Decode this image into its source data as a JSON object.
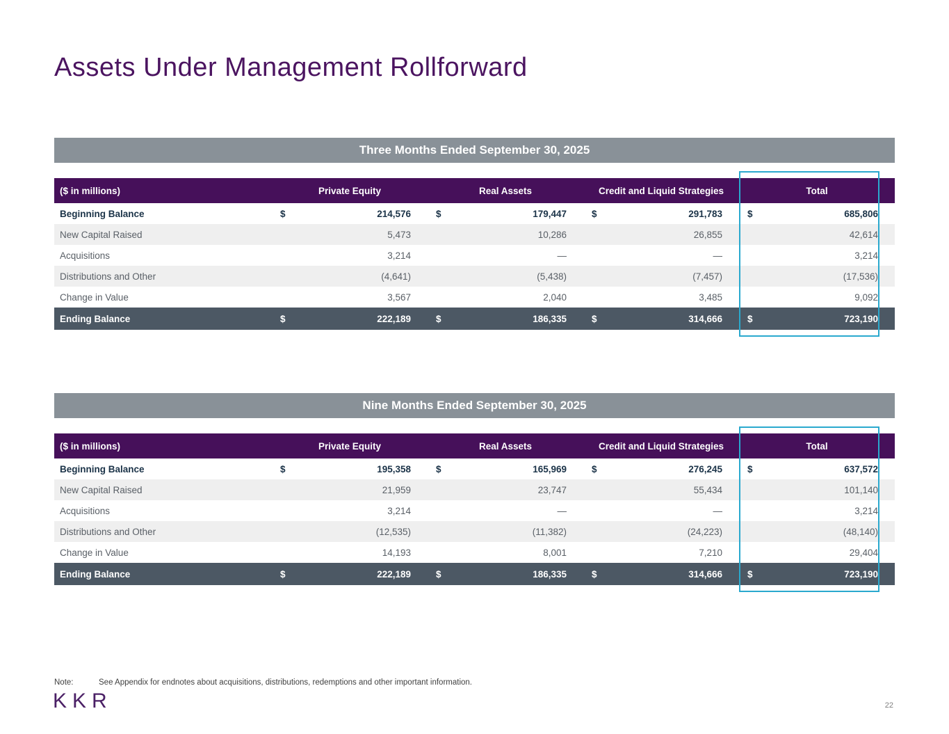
{
  "page": {
    "title": "Assets Under Management Rollforward",
    "page_number": "22"
  },
  "dollar_sign": "$",
  "colors": {
    "purple": "#46105A",
    "title-purple": "#4B1460",
    "banner-gray": "#899198",
    "slate": "#4C5864",
    "shade": "#EFEFEF",
    "text-gray": "#595F66",
    "text-navy": "#1B3348",
    "teal": "#2AA9CE",
    "note-gray": "#404040",
    "pagenum-gray": "#7F7F7F",
    "logo-purple": "#4B2066"
  },
  "tables": [
    {
      "banner": "Three Months Ended September 30, 2025",
      "header": {
        "label_col": "($ in millions)",
        "columns": [
          "Private Equity",
          "Real Assets",
          "Credit and Liquid Strategies",
          "Total"
        ]
      },
      "rows": [
        {
          "label": "Beginning Balance",
          "dollar": true,
          "bold": true,
          "shaded": false,
          "total": false,
          "values": [
            "214,576",
            "179,447",
            "291,783",
            "685,806"
          ]
        },
        {
          "label": "New Capital Raised",
          "dollar": false,
          "bold": false,
          "shaded": true,
          "total": false,
          "values": [
            "5,473",
            "10,286",
            "26,855",
            "42,614"
          ]
        },
        {
          "label": "Acquisitions",
          "dollar": false,
          "bold": false,
          "shaded": false,
          "total": false,
          "values": [
            "3,214",
            "—",
            "—",
            "3,214"
          ]
        },
        {
          "label": "Distributions and Other",
          "dollar": false,
          "bold": false,
          "shaded": true,
          "total": false,
          "values": [
            "(4,641)",
            "(5,438)",
            "(7,457)",
            "(17,536)"
          ]
        },
        {
          "label": "Change in Value",
          "dollar": false,
          "bold": false,
          "shaded": false,
          "total": false,
          "values": [
            "3,567",
            "2,040",
            "3,485",
            "9,092"
          ]
        },
        {
          "label": "Ending Balance",
          "dollar": true,
          "bold": false,
          "shaded": false,
          "total": true,
          "values": [
            "222,189",
            "186,335",
            "314,666",
            "723,190"
          ]
        }
      ]
    },
    {
      "banner": "Nine Months Ended September 30, 2025",
      "header": {
        "label_col": "($ in millions)",
        "columns": [
          "Private Equity",
          "Real Assets",
          "Credit and Liquid Strategies",
          "Total"
        ]
      },
      "rows": [
        {
          "label": "Beginning Balance",
          "dollar": true,
          "bold": true,
          "shaded": false,
          "total": false,
          "values": [
            "195,358",
            "165,969",
            "276,245",
            "637,572"
          ]
        },
        {
          "label": "New Capital Raised",
          "dollar": false,
          "bold": false,
          "shaded": true,
          "total": false,
          "values": [
            "21,959",
            "23,747",
            "55,434",
            "101,140"
          ]
        },
        {
          "label": "Acquisitions",
          "dollar": false,
          "bold": false,
          "shaded": false,
          "total": false,
          "values": [
            "3,214",
            "—",
            "—",
            "3,214"
          ]
        },
        {
          "label": "Distributions and Other",
          "dollar": false,
          "bold": false,
          "shaded": true,
          "total": false,
          "values": [
            "(12,535)",
            "(11,382)",
            "(24,223)",
            "(48,140)"
          ]
        },
        {
          "label": "Change in Value",
          "dollar": false,
          "bold": false,
          "shaded": false,
          "total": false,
          "values": [
            "14,193",
            "8,001",
            "7,210",
            "29,404"
          ]
        },
        {
          "label": "Ending Balance",
          "dollar": true,
          "bold": false,
          "shaded": false,
          "total": true,
          "values": [
            "222,189",
            "186,335",
            "314,666",
            "723,190"
          ]
        }
      ]
    }
  ],
  "note": {
    "label": "Note:",
    "text": "See Appendix for endnotes about acquisitions, distributions, redemptions and other important information."
  },
  "logo_text": "KKR"
}
